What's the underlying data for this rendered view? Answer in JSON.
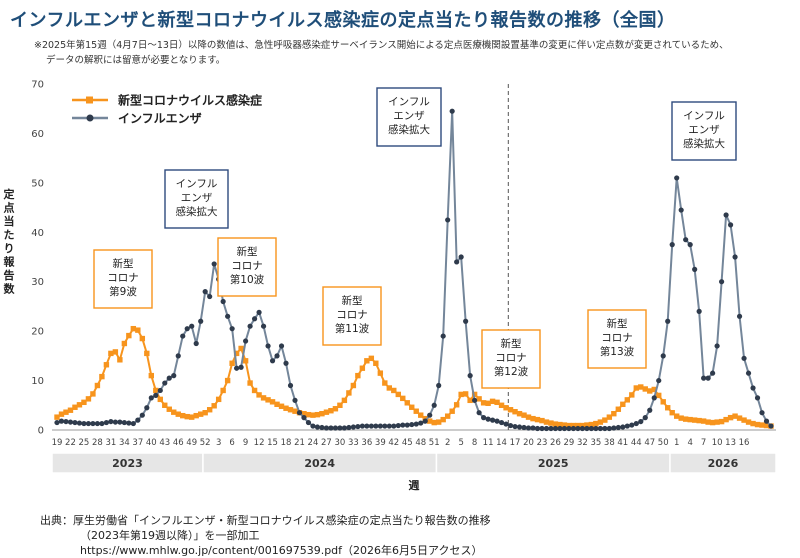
{
  "title": "インフルエンザと新型コロナウイルス感染症の定点当たり報告数の推移（全国）",
  "note_line1": "※2025年第15週（4月7日～13日）以降の数値は、急性呼吸器感染症サーベイランス開始による定点医療機関設置基準の変更に伴い定点数が変更されているため、",
  "note_line2": "データの解釈には留意が必要となります。",
  "source_line1": "出典：厚生労働省「インフルエンザ・新型コロナウイルス感染症の定点当たり報告数の推移",
  "source_line2": "（2023年第19週以降）」を一部加工",
  "source_line3": "https://www.mhlw.go.jp/content/001697539.pdf（2026年6月5日アクセス）",
  "chart_data": {
    "type": "line",
    "xlabel": "週",
    "ylabel": "定点当たり報告数",
    "ylim": [
      0,
      70
    ],
    "yticks": [
      0,
      10,
      20,
      30,
      40,
      50,
      60,
      70
    ],
    "xtick_labels": [
      "19",
      "22",
      "25",
      "28",
      "31",
      "34",
      "37",
      "40",
      "43",
      "46",
      "49",
      "52",
      "3",
      "6",
      "9",
      "12",
      "15",
      "18",
      "21",
      "24",
      "27",
      "30",
      "33",
      "36",
      "39",
      "42",
      "45",
      "48",
      "51",
      "2",
      "5",
      "8",
      "11",
      "14",
      "17",
      "20",
      "23",
      "26",
      "29",
      "32",
      "35",
      "38",
      "41",
      "44",
      "47",
      "50",
      "1",
      "4",
      "7",
      "10",
      "13",
      "16"
    ],
    "years": [
      {
        "label": "2023",
        "start": 0,
        "end": 33
      },
      {
        "label": "2024",
        "start": 33,
        "end": 85
      },
      {
        "label": "2025",
        "start": 85,
        "end": 137
      },
      {
        "label": "2026",
        "start": 137,
        "end": 155
      }
    ],
    "divider_at_index": 100,
    "legend_position": "top-left",
    "series": [
      {
        "name": "新型コロナウイルス感染症",
        "color": "#f7941d",
        "marker": "square",
        "values": [
          2.6,
          3.2,
          3.6,
          4.0,
          4.6,
          5.1,
          5.6,
          6.3,
          7.3,
          9.0,
          10.8,
          13.2,
          15.5,
          15.8,
          14.2,
          17.5,
          19.1,
          20.5,
          20.2,
          18.5,
          15.5,
          11.0,
          8.0,
          6.2,
          5.0,
          4.2,
          3.6,
          3.2,
          2.9,
          2.7,
          2.6,
          2.9,
          3.2,
          3.5,
          4.1,
          4.9,
          6.2,
          8.0,
          10.0,
          13.5,
          15.5,
          16.5,
          14.0,
          9.5,
          8.0,
          7.1,
          6.5,
          6.1,
          5.7,
          5.2,
          4.8,
          4.4,
          4.1,
          3.8,
          3.5,
          3.3,
          3.1,
          3.0,
          3.1,
          3.3,
          3.6,
          3.9,
          4.3,
          5.0,
          6.0,
          7.5,
          9.0,
          11.0,
          12.5,
          14.0,
          14.5,
          13.5,
          11.5,
          9.5,
          8.5,
          8.0,
          7.2,
          6.4,
          5.5,
          4.6,
          3.8,
          3.0,
          2.3,
          1.8,
          1.5,
          1.6,
          2.1,
          2.8,
          3.8,
          5.1,
          7.2,
          7.3,
          6.0,
          7.2,
          6.3,
          5.5,
          5.4,
          5.8,
          5.6,
          5.0,
          4.5,
          4.1,
          3.7,
          3.3,
          3.0,
          2.6,
          2.3,
          2.1,
          1.9,
          1.6,
          1.4,
          1.2,
          1.1,
          1.0,
          0.9,
          0.9,
          0.9,
          0.9,
          1.0,
          1.1,
          1.3,
          1.6,
          2.0,
          2.6,
          3.3,
          4.2,
          5.2,
          6.1,
          7.1,
          8.5,
          8.7,
          8.3,
          7.9,
          8.2,
          7.0,
          5.7,
          4.5,
          3.5,
          2.8,
          2.4,
          2.2,
          2.1,
          2.0,
          1.9,
          1.8,
          1.6,
          1.5,
          1.6,
          1.7,
          2.1,
          2.5,
          2.8,
          2.4,
          2.0,
          1.6,
          1.3,
          1.1,
          1.0,
          0.9,
          0.8
        ]
      },
      {
        "name": "インフルエンザ",
        "color": "#74869a",
        "marker": "circle",
        "values": [
          1.5,
          1.8,
          1.7,
          1.6,
          1.5,
          1.4,
          1.3,
          1.3,
          1.3,
          1.3,
          1.3,
          1.5,
          1.7,
          1.6,
          1.6,
          1.5,
          1.4,
          1.3,
          2.0,
          3.0,
          4.5,
          6.5,
          7.0,
          8.0,
          9.5,
          10.5,
          11.0,
          15.0,
          19.0,
          20.5,
          21.0,
          17.5,
          22.0,
          28.0,
          27.0,
          33.6,
          30.5,
          26.0,
          23.0,
          20.5,
          12.5,
          12.7,
          18.0,
          21.0,
          22.5,
          23.8,
          21.0,
          17.0,
          14.0,
          15.0,
          17.0,
          13.5,
          9.0,
          6.0,
          3.5,
          2.5,
          1.5,
          0.8,
          0.6,
          0.5,
          0.4,
          0.4,
          0.4,
          0.4,
          0.4,
          0.5,
          0.6,
          0.7,
          0.8,
          0.8,
          0.8,
          0.8,
          0.8,
          0.8,
          0.8,
          0.8,
          0.9,
          1.0,
          1.0,
          1.1,
          1.2,
          1.4,
          1.8,
          3.0,
          5.0,
          9.0,
          19.0,
          42.5,
          64.5,
          34.0,
          35.0,
          22.0,
          11.0,
          6.0,
          3.5,
          2.5,
          2.2,
          2.0,
          1.8,
          1.5,
          1.2,
          0.9,
          0.7,
          0.6,
          0.5,
          0.4,
          0.4,
          0.3,
          0.3,
          0.3,
          0.3,
          0.3,
          0.3,
          0.3,
          0.3,
          0.3,
          0.3,
          0.3,
          0.3,
          0.3,
          0.3,
          0.3,
          0.3,
          0.3,
          0.4,
          0.5,
          0.6,
          0.8,
          1.0,
          1.3,
          1.7,
          2.5,
          4.0,
          6.5,
          10.0,
          15.0,
          22.0,
          37.5,
          51.0,
          44.5,
          38.5,
          37.5,
          32.5,
          24.0,
          10.5,
          10.5,
          11.5,
          17.0,
          30.0,
          43.5,
          41.5,
          35.0,
          23.0,
          14.5,
          11.5,
          8.5,
          6.5,
          3.5,
          1.8,
          0.8
        ]
      }
    ],
    "annotations": [
      {
        "text_lines": [
          "新型",
          "コロナ",
          "第9波"
        ],
        "kind": "covid"
      },
      {
        "text_lines": [
          "インフル",
          "エンザ",
          "感染拡大"
        ],
        "kind": "flu"
      },
      {
        "text_lines": [
          "新型",
          "コロナ",
          "第10波"
        ],
        "kind": "covid"
      },
      {
        "text_lines": [
          "新型",
          "コロナ",
          "第11波"
        ],
        "kind": "covid"
      },
      {
        "text_lines": [
          "インフル",
          "エンザ",
          "感染拡大"
        ],
        "kind": "flu"
      },
      {
        "text_lines": [
          "新型",
          "コロナ",
          "第12波"
        ],
        "kind": "covid"
      },
      {
        "text_lines": [
          "新型",
          "コロナ",
          "第13波"
        ],
        "kind": "covid"
      },
      {
        "text_lines": [
          "インフル",
          "エンザ",
          "感染拡大"
        ],
        "kind": "flu"
      }
    ]
  }
}
